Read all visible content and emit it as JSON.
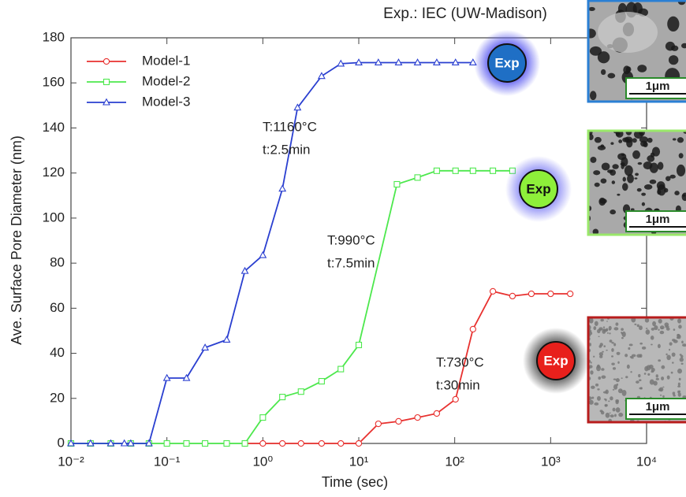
{
  "chart_data": {
    "type": "line",
    "header": "Exp.: IEC (UW-Madison)",
    "xlabel": "Time (sec)",
    "ylabel": "Ave. Surface Pore Diameter (nm)",
    "xscale": "log",
    "xlim": [
      0.01,
      10000
    ],
    "xticks": [
      {
        "value": 0.01,
        "label": "10⁻²"
      },
      {
        "value": 0.1,
        "label": "10⁻¹"
      },
      {
        "value": 1,
        "label": "10⁰"
      },
      {
        "value": 10,
        "label": "10¹"
      },
      {
        "value": 100,
        "label": "10²"
      },
      {
        "value": 1000,
        "label": "10³"
      },
      {
        "value": 10000,
        "label": "10⁴"
      }
    ],
    "ylim": [
      0,
      180
    ],
    "yticks": [
      0,
      20,
      40,
      60,
      80,
      100,
      120,
      140,
      160,
      180
    ],
    "grid": false,
    "legend": "upper left",
    "series": [
      {
        "name": "Model-1",
        "color": "#e8312f",
        "marker": "circle",
        "x": [
          0.65,
          1.0,
          1.6,
          2.5,
          4.1,
          6.5,
          10,
          16,
          26,
          41,
          65,
          102,
          155,
          250,
          400,
          630,
          1000,
          1600
        ],
        "values": [
          0,
          0,
          0,
          0,
          0,
          0,
          0,
          8.7,
          9.8,
          11.5,
          13.3,
          19.6,
          50.7,
          67.5,
          65.4,
          66.4,
          66.4,
          66.4
        ]
      },
      {
        "name": "Model-2",
        "color": "#4de84d",
        "marker": "square",
        "x": [
          0.01,
          0.016,
          0.026,
          0.042,
          0.065,
          0.1,
          0.16,
          0.25,
          0.42,
          0.65,
          1.0,
          1.6,
          2.5,
          4.1,
          6.5,
          10,
          25,
          41,
          65,
          102,
          155,
          250,
          400
        ],
        "values": [
          0,
          0,
          0,
          0,
          0,
          0,
          0,
          0,
          0,
          0,
          11.5,
          20.6,
          23,
          27.6,
          33,
          43.7,
          115,
          118,
          121,
          121,
          121,
          121,
          121
        ]
      },
      {
        "name": "Model-3",
        "color": "#2a3fd0",
        "marker": "triangle",
        "x": [
          0.01,
          0.016,
          0.026,
          0.036,
          0.042,
          0.065,
          0.1,
          0.16,
          0.25,
          0.42,
          0.65,
          1.0,
          1.6,
          2.3,
          4.1,
          6.5,
          10,
          16,
          26,
          41,
          65,
          102,
          155
        ],
        "values": [
          0,
          0,
          0,
          0,
          0,
          0,
          29,
          29,
          42.5,
          46,
          76.5,
          83.5,
          113,
          149,
          163,
          168.5,
          169,
          169,
          169,
          169,
          169,
          169,
          169
        ]
      }
    ],
    "annotations": [
      {
        "line1": "T:1160°C",
        "line2": "t:2.5min"
      },
      {
        "line1": "T:990°C",
        "line2": "t:7.5min"
      },
      {
        "line1": "T:730°C",
        "line2": "t:30min"
      }
    ],
    "exp_markers": [
      {
        "label": "Exp",
        "color": "#1f6fc5",
        "glow": "#5a5af0"
      },
      {
        "label": "Exp",
        "color": "#8ef03a",
        "glow": "#7a7af0"
      },
      {
        "label": "Exp",
        "color": "#e8201c",
        "glow": "#666666"
      }
    ],
    "images": [
      {
        "scale_label": "1μm",
        "border": "#2a7fd4"
      },
      {
        "scale_label": "1μm",
        "border": "#9ae86a"
      },
      {
        "scale_label": "1μm",
        "border": "#b81c1c"
      }
    ]
  }
}
